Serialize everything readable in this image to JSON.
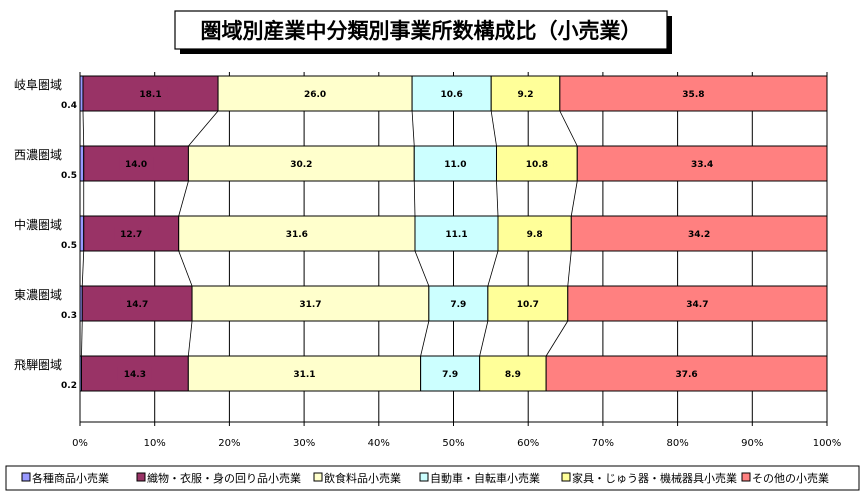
{
  "chart_data": {
    "type": "bar",
    "stacked": true,
    "orientation": "horizontal",
    "title": "圏域別産業中分類別事業所数構成比（小売業）",
    "categories": [
      "岐阜圏域",
      "西濃圏域",
      "中濃圏域",
      "東濃圏域",
      "飛騨圏域"
    ],
    "series": [
      {
        "name": "各種商品小売業",
        "color": "#9999ff",
        "values": [
          0.4,
          0.5,
          0.5,
          0.3,
          0.2
        ]
      },
      {
        "name": "織物・衣服・身の回り品小売業",
        "color": "#993366",
        "values": [
          18.1,
          14.0,
          12.7,
          14.7,
          14.3
        ]
      },
      {
        "name": "飲食料品小売業",
        "color": "#ffffcc",
        "values": [
          26.0,
          30.2,
          31.6,
          31.7,
          31.1
        ]
      },
      {
        "name": "自動車・自転車小売業",
        "color": "#ccffff",
        "values": [
          10.6,
          11.0,
          11.1,
          7.9,
          7.9
        ]
      },
      {
        "name": "家具・じゅう器・機械器具小売業",
        "color": "#ffff99",
        "values": [
          9.2,
          10.8,
          9.8,
          10.7,
          8.9
        ]
      },
      {
        "name": "その他の小売業",
        "color": "#ff8080",
        "values": [
          35.8,
          33.4,
          34.2,
          34.7,
          37.6
        ]
      }
    ],
    "value_labels": [
      [
        null,
        "18.1",
        "26.0",
        "10.6",
        "9.2",
        "35.8"
      ],
      [
        null,
        "14.0",
        "30.2",
        "11.0",
        "10.8",
        "33.4"
      ],
      [
        null,
        "12.7",
        "31.6",
        "11.1",
        "9.8",
        "34.2"
      ],
      [
        null,
        "14.7",
        "31.7",
        "7.9",
        "10.7",
        "34.7"
      ],
      [
        null,
        "14.3",
        "31.1",
        "7.9",
        "8.9",
        "37.6"
      ]
    ],
    "small_labels": [
      "0.4",
      "0.5",
      "0.5",
      "0.3",
      "0.2"
    ],
    "xlim": [
      0,
      100
    ],
    "xticks": [
      "0%",
      "10%",
      "20%",
      "30%",
      "40%",
      "50%",
      "60%",
      "70%",
      "80%",
      "90%",
      "100%"
    ],
    "grid": true,
    "series_lines": true,
    "legend_position": "bottom"
  }
}
